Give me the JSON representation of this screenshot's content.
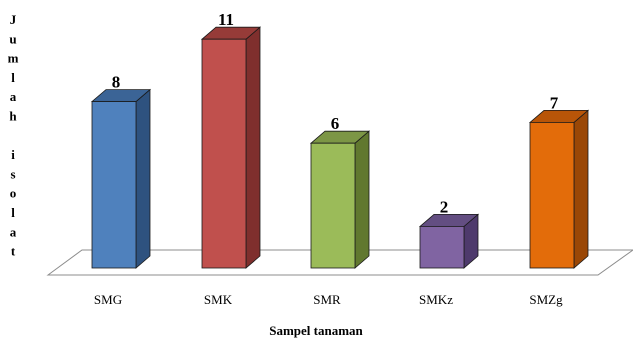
{
  "chart_data": {
    "type": "bar",
    "style": "3d-column",
    "title": "",
    "xlabel": "Sampel tanaman",
    "ylabel": "Jumlah isolat",
    "categories": [
      "SMG",
      "SMK",
      "SMR",
      "SMKz",
      "SMZg"
    ],
    "values": [
      8,
      11,
      6,
      2,
      7
    ],
    "data_labels": [
      "8",
      "11",
      "6",
      "2",
      "7"
    ],
    "ylim": [
      0,
      11
    ],
    "grid": false,
    "legend": "none",
    "colors": [
      "#4F81BD",
      "#C0504D",
      "#9BBB59",
      "#8064A2",
      "#E36C0A"
    ],
    "side_colors": [
      "#2E527F",
      "#7F2F2D",
      "#61782F",
      "#4E3A6C",
      "#9A4706"
    ],
    "top_colors": [
      "#3B6496",
      "#963B38",
      "#7C9645",
      "#634E82",
      "#B85508"
    ]
  }
}
